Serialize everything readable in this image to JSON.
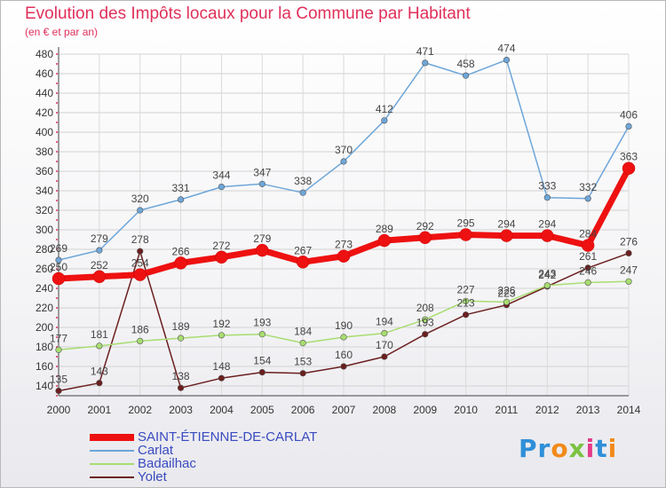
{
  "title": "Evolution des Impôts locaux pour la Commune par Habitant",
  "subtitle": "(en € et par an)",
  "logo": "Proxiti",
  "chart_data": {
    "type": "line",
    "title": "Evolution des Impôts locaux pour la Commune par Habitant",
    "subtitle": "(en € et par an)",
    "xlabel": "",
    "ylabel": "",
    "categories": [
      "2000",
      "2001",
      "2002",
      "2003",
      "2004",
      "2005",
      "2006",
      "2007",
      "2008",
      "2009",
      "2010",
      "2011",
      "2012",
      "2013",
      "2014"
    ],
    "ylim": [
      130,
      480
    ],
    "yticks": [
      140,
      160,
      180,
      200,
      220,
      240,
      260,
      280,
      300,
      320,
      340,
      360,
      380,
      400,
      420,
      440,
      460,
      480
    ],
    "grid": true,
    "legend_position": "bottom-left",
    "series": [
      {
        "name": "SAINT-ÉTIENNE-DE-CARLAT",
        "color": "#ee1111",
        "values": [
          250,
          252,
          254,
          266,
          272,
          279,
          267,
          273,
          289,
          292,
          295,
          294,
          294,
          284,
          363
        ]
      },
      {
        "name": "Carlat",
        "color": "#6ea6d8",
        "values": [
          269,
          279,
          320,
          331,
          344,
          347,
          338,
          370,
          412,
          471,
          458,
          474,
          333,
          332,
          406
        ]
      },
      {
        "name": "Badailhac",
        "color": "#a8dd70",
        "values": [
          177,
          181,
          186,
          189,
          192,
          193,
          184,
          190,
          194,
          208,
          227,
          226,
          243,
          246,
          247
        ]
      },
      {
        "name": "Yolet",
        "color": "#6b1e1e",
        "values": [
          135,
          143,
          278,
          138,
          148,
          154,
          153,
          160,
          170,
          193,
          213,
          223,
          242,
          261,
          276
        ]
      }
    ]
  }
}
